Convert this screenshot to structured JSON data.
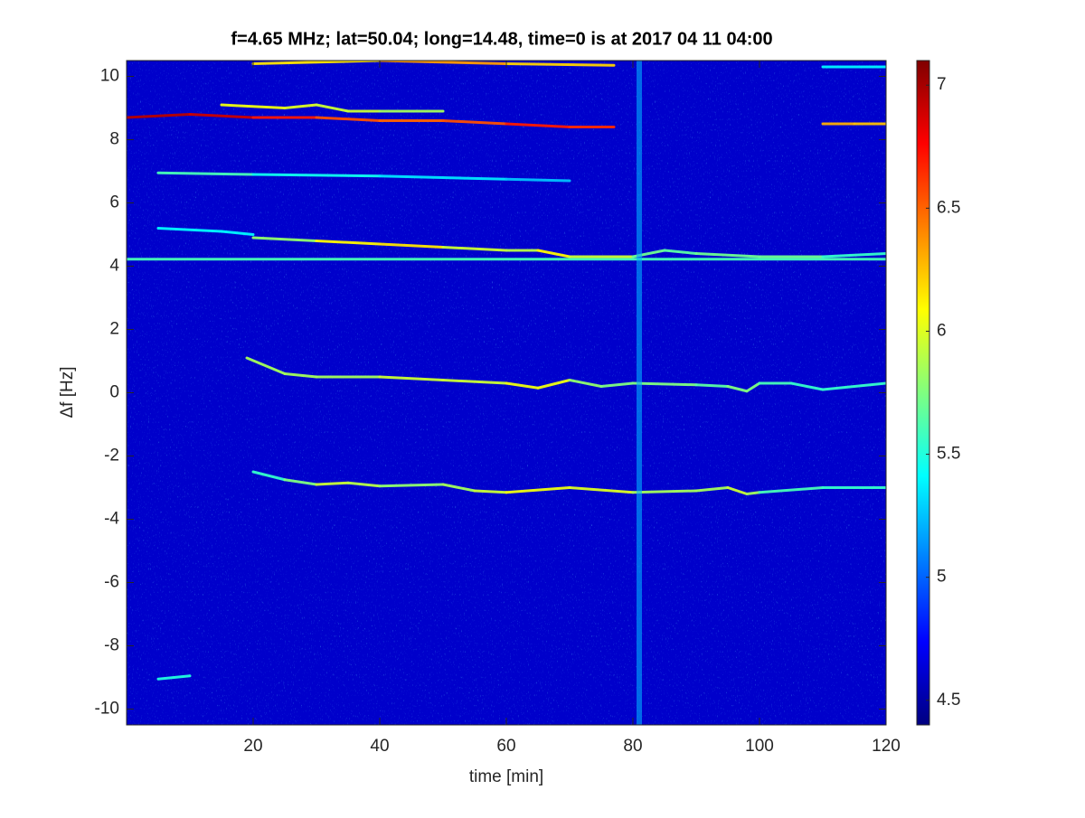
{
  "chart_data": {
    "type": "spectrogram",
    "title": "f=4.65 MHz;  lat=50.04; long=14.48, time=0 is at 2017 04 11 04:00",
    "xlabel": "time [min]",
    "ylabel": "Δf [Hz]",
    "xlim": [
      0,
      120
    ],
    "ylim": [
      -10.5,
      10.5
    ],
    "xticks": [
      20,
      40,
      60,
      80,
      100,
      120
    ],
    "yticks": [
      -10,
      -8,
      -6,
      -4,
      -2,
      0,
      2,
      4,
      6,
      8,
      10
    ],
    "colormap": "jet",
    "clim": [
      4.4,
      7.1
    ],
    "colorbar_ticks": [
      4.5,
      5,
      5.5,
      6,
      6.5,
      7
    ],
    "background": 4.6,
    "traces": [
      {
        "x": [
          0,
          10,
          20,
          30,
          40,
          50,
          60,
          70,
          77
        ],
        "values": [
          8.7,
          8.8,
          8.7,
          8.7,
          8.6,
          8.6,
          8.5,
          8.4,
          8.4
        ],
        "z": [
          6.9,
          7.0,
          6.8,
          6.6,
          6.5,
          6.5,
          6.6,
          6.8,
          6.5
        ]
      },
      {
        "x": [
          15,
          25,
          30,
          35,
          40,
          50
        ],
        "values": [
          9.1,
          9.0,
          9.1,
          8.9,
          8.9,
          8.9
        ],
        "z": [
          6.0,
          6.1,
          5.9,
          6.0,
          5.9,
          5.8
        ]
      },
      {
        "x": [
          20,
          40,
          60,
          77
        ],
        "values": [
          10.4,
          10.5,
          10.4,
          10.35
        ],
        "z": [
          6.0,
          6.3,
          6.4,
          6.0
        ]
      },
      {
        "x": [
          110,
          120
        ],
        "values": [
          10.3,
          10.3
        ],
        "z": [
          5.4,
          5.4
        ]
      },
      {
        "x": [
          110,
          115,
          120
        ],
        "values": [
          8.5,
          8.5,
          8.5
        ],
        "z": [
          6.2,
          6.4,
          6.1
        ]
      },
      {
        "x": [
          5,
          20,
          40,
          60,
          70
        ],
        "values": [
          6.95,
          6.9,
          6.85,
          6.75,
          6.7
        ],
        "z": [
          5.7,
          5.5,
          5.4,
          5.3,
          5.2
        ]
      },
      {
        "x": [
          0,
          120
        ],
        "values": [
          4.22,
          4.22
        ],
        "z": [
          5.6,
          5.6
        ]
      },
      {
        "x": [
          20,
          30,
          40,
          50,
          60,
          65,
          70,
          80,
          85,
          90,
          100,
          110,
          120
        ],
        "values": [
          4.9,
          4.8,
          4.7,
          4.6,
          4.5,
          4.5,
          4.3,
          4.3,
          4.5,
          4.4,
          4.3,
          4.3,
          4.4
        ],
        "z": [
          5.6,
          6.0,
          6.2,
          6.1,
          5.8,
          6.0,
          6.2,
          5.7,
          5.7,
          5.6,
          5.8,
          5.6,
          5.5
        ]
      },
      {
        "x": [
          5,
          15,
          20
        ],
        "values": [
          5.2,
          5.1,
          5.0
        ],
        "z": [
          5.4,
          5.4,
          5.4
        ]
      },
      {
        "x": [
          19,
          25,
          30,
          40,
          50,
          60,
          65,
          70,
          75,
          80,
          90,
          95,
          98,
          100,
          105,
          110,
          120
        ],
        "values": [
          1.1,
          0.6,
          0.5,
          0.5,
          0.4,
          0.3,
          0.15,
          0.4,
          0.2,
          0.3,
          0.25,
          0.2,
          0.05,
          0.3,
          0.3,
          0.1,
          0.3
        ],
        "z": [
          5.8,
          5.9,
          5.8,
          5.9,
          6.0,
          5.9,
          6.2,
          5.9,
          5.7,
          5.8,
          5.7,
          5.6,
          5.9,
          5.6,
          5.6,
          5.5,
          5.6
        ]
      },
      {
        "x": [
          20,
          25,
          30,
          35,
          40,
          50,
          55,
          60,
          70,
          80,
          90,
          95,
          98,
          100,
          110,
          120
        ],
        "values": [
          -2.5,
          -2.75,
          -2.9,
          -2.85,
          -2.95,
          -2.9,
          -3.1,
          -3.15,
          -3.0,
          -3.15,
          -3.1,
          -3.0,
          -3.2,
          -3.15,
          -3.0,
          -3.0
        ],
        "z": [
          5.5,
          5.6,
          5.9,
          6.0,
          5.8,
          5.8,
          5.9,
          6.0,
          6.1,
          5.9,
          5.8,
          5.9,
          6.0,
          5.7,
          5.5,
          5.6
        ]
      },
      {
        "x": [
          5,
          10
        ],
        "values": [
          -9.05,
          -8.95
        ],
        "z": [
          5.5,
          5.5
        ]
      },
      {
        "x": [
          81,
          81
        ],
        "values": [
          -10.5,
          10.5
        ],
        "z": [
          5.2,
          5.2
        ]
      }
    ]
  }
}
